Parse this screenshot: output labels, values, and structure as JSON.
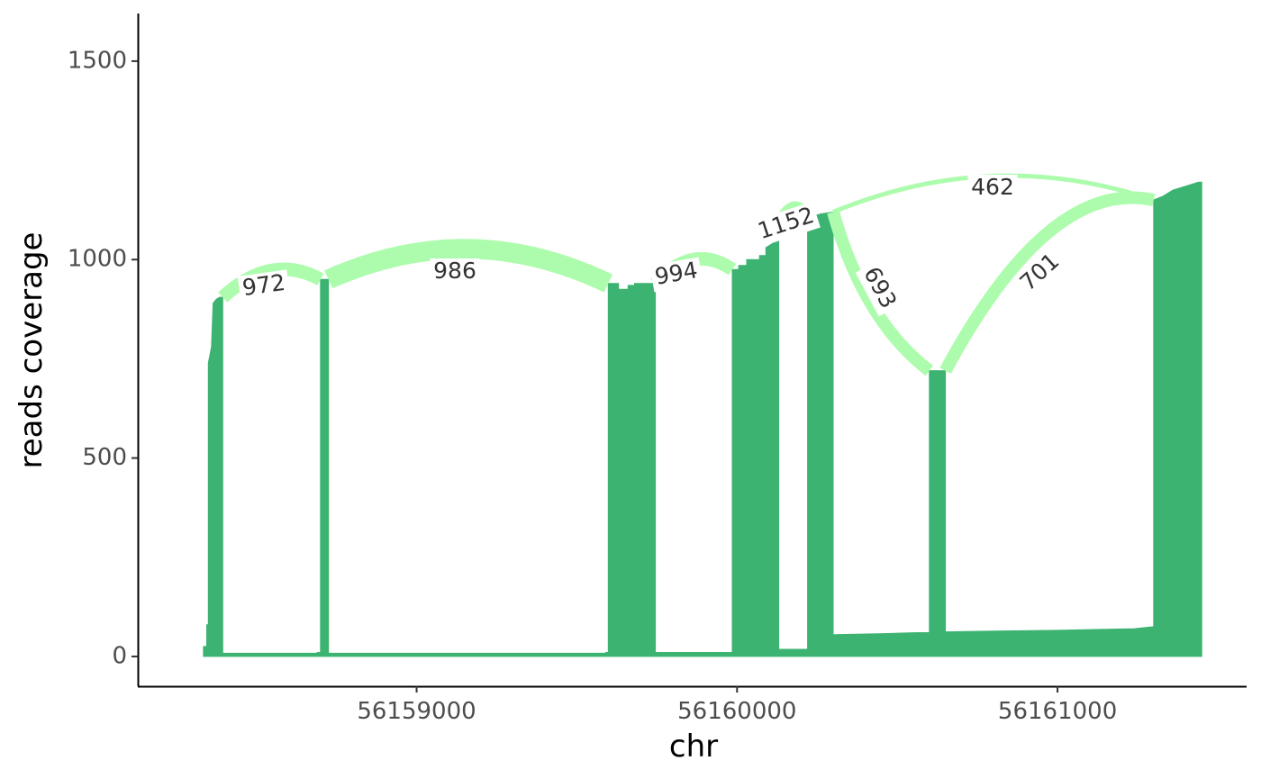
{
  "chart_data": {
    "type": "area",
    "title": "",
    "xlabel": "chr",
    "ylabel": "reads coverage",
    "xlim": [
      56158130,
      56161590
    ],
    "ylim": [
      -75,
      1620
    ],
    "x_ticks": [
      56159000,
      56160000,
      56161000
    ],
    "x_tick_labels": [
      "56159000",
      "56160000",
      "56161000"
    ],
    "y_ticks": [
      0,
      500,
      1000,
      1500
    ],
    "y_tick_labels": [
      "0",
      "500",
      "1000",
      "1500"
    ],
    "grid": false,
    "legend": "none",
    "colors": {
      "coverage": "#3cb371",
      "junction": "#adfcad",
      "axis": "#000000",
      "tick_text": "#4d4d4d",
      "label_text": "#333333"
    },
    "coverage": [
      [
        56158335,
        0
      ],
      [
        56158335,
        25
      ],
      [
        56158345,
        25
      ],
      [
        56158345,
        80
      ],
      [
        56158350,
        80
      ],
      [
        56158350,
        740
      ],
      [
        56158355,
        760
      ],
      [
        56158360,
        780
      ],
      [
        56158365,
        890
      ],
      [
        56158375,
        900
      ],
      [
        56158385,
        905
      ],
      [
        56158395,
        905
      ],
      [
        56158395,
        8
      ],
      [
        56158690,
        8
      ],
      [
        56158690,
        10
      ],
      [
        56158700,
        10
      ],
      [
        56158700,
        950
      ],
      [
        56158725,
        950
      ],
      [
        56158725,
        8
      ],
      [
        56159590,
        8
      ],
      [
        56159590,
        10
      ],
      [
        56159598,
        10
      ],
      [
        56159598,
        940
      ],
      [
        56159630,
        940
      ],
      [
        56159630,
        925
      ],
      [
        56159660,
        925
      ],
      [
        56159660,
        935
      ],
      [
        56159680,
        935
      ],
      [
        56159680,
        940
      ],
      [
        56159745,
        940
      ],
      [
        56159745,
        10
      ],
      [
        56159985,
        10
      ],
      [
        56159985,
        975
      ],
      [
        56160005,
        975
      ],
      [
        56160005,
        985
      ],
      [
        56160030,
        985
      ],
      [
        56160030,
        1000
      ],
      [
        56160070,
        1000
      ],
      [
        56160070,
        1010
      ],
      [
        56160090,
        1010
      ],
      [
        56160090,
        1030
      ],
      [
        56160110,
        1040
      ],
      [
        56160120,
        1060
      ],
      [
        56160130,
        1080
      ],
      [
        56160130,
        18
      ],
      [
        56160220,
        18
      ],
      [
        56160220,
        1100
      ],
      [
        56160240,
        1110
      ],
      [
        56160260,
        1115
      ],
      [
        56160300,
        1120
      ],
      [
        56160300,
        55
      ],
      [
        56160440,
        57
      ],
      [
        56160480,
        58
      ],
      [
        56160560,
        60
      ],
      [
        56160600,
        60
      ],
      [
        56160600,
        720
      ],
      [
        56160650,
        720
      ],
      [
        56160650,
        62
      ],
      [
        56160800,
        64
      ],
      [
        56161000,
        66
      ],
      [
        56161240,
        70
      ],
      [
        56161300,
        75
      ],
      [
        56161300,
        1150
      ],
      [
        56161330,
        1160
      ],
      [
        56161360,
        1175
      ],
      [
        56161400,
        1185
      ],
      [
        56161440,
        1195
      ],
      [
        56161450,
        1195
      ],
      [
        56161450,
        0
      ]
    ],
    "junctions": [
      {
        "start": 56158395,
        "end": 56158700,
        "count": 972
      },
      {
        "start": 56158725,
        "end": 56159598,
        "count": 986
      },
      {
        "start": 56159745,
        "end": 56159985,
        "count": 994
      },
      {
        "start": 56160130,
        "end": 56160220,
        "count": 1152
      },
      {
        "start": 56160300,
        "end": 56160600,
        "count": 693
      },
      {
        "start": 56160650,
        "end": 56161300,
        "count": 701
      },
      {
        "start": 56160300,
        "end": 56161300,
        "count": 462
      }
    ],
    "junction_labels": [
      "972",
      "986",
      "994",
      "1152",
      "693",
      "701",
      "462"
    ]
  }
}
